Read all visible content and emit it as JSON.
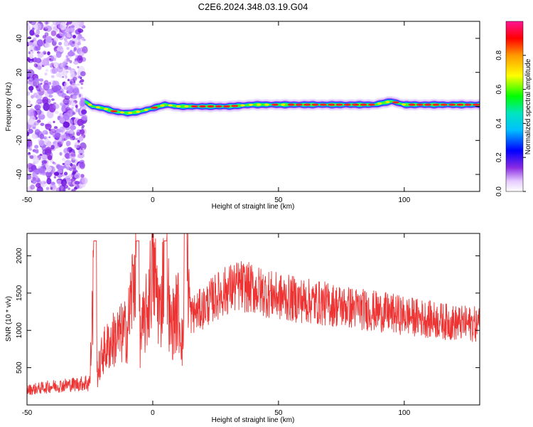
{
  "title": "C2E6.2024.348.03.19.G04",
  "chart_data": [
    {
      "type": "heatmap",
      "xlabel": "Height of straight line (km)",
      "ylabel": "Frequency (Hz)",
      "xlim": [
        -50,
        130
      ],
      "ylim": [
        -50,
        50
      ],
      "xticks": [
        -50,
        0,
        50,
        100
      ],
      "yticks": [
        40,
        20,
        0,
        -20,
        -40
      ],
      "colorbar": {
        "label": "Normalized spectral amplitude",
        "range": [
          0,
          1
        ],
        "ticks": [
          "0.0",
          "0.2",
          "0.4",
          "0.6",
          "0.8"
        ]
      },
      "ridge": {
        "x": [
          -27,
          -24,
          -20,
          -15,
          -10,
          -5,
          0,
          5,
          10,
          20,
          30,
          40,
          60,
          80,
          88,
          95,
          100,
          130
        ],
        "frequency": [
          3,
          0,
          -1,
          -3,
          -4,
          -3,
          -1,
          1,
          0,
          0,
          0,
          1,
          1,
          1,
          1,
          3,
          1,
          1
        ]
      },
      "noise_region_x": [
        -50,
        -27
      ]
    },
    {
      "type": "line",
      "xlabel": "Height of straight line (km)",
      "ylabel": "SNR (10 * v/v)",
      "xlim": [
        -50,
        130
      ],
      "ylim": [
        0,
        2300
      ],
      "xticks": [
        -50,
        0,
        50,
        100
      ],
      "yticks": [
        500,
        1000,
        1500,
        2000
      ],
      "series": [
        {
          "color": "#ee3333",
          "x": [
            -50,
            -40,
            -30,
            -25,
            -23,
            -22,
            -20,
            -15,
            -10,
            -6,
            -5,
            -2,
            0,
            3,
            5,
            7,
            10,
            12,
            13,
            15,
            20,
            25,
            30,
            35,
            40,
            45,
            50,
            60,
            70,
            80,
            90,
            100,
            110,
            120,
            130
          ],
          "values": [
            200,
            250,
            280,
            300,
            2200,
            400,
            700,
            900,
            1000,
            2200,
            900,
            1300,
            1900,
            1200,
            2200,
            1000,
            1300,
            800,
            2300,
            1200,
            1300,
            1450,
            1550,
            1600,
            1550,
            1500,
            1450,
            1400,
            1350,
            1300,
            1250,
            1200,
            1150,
            1100,
            1080
          ]
        }
      ]
    }
  ]
}
